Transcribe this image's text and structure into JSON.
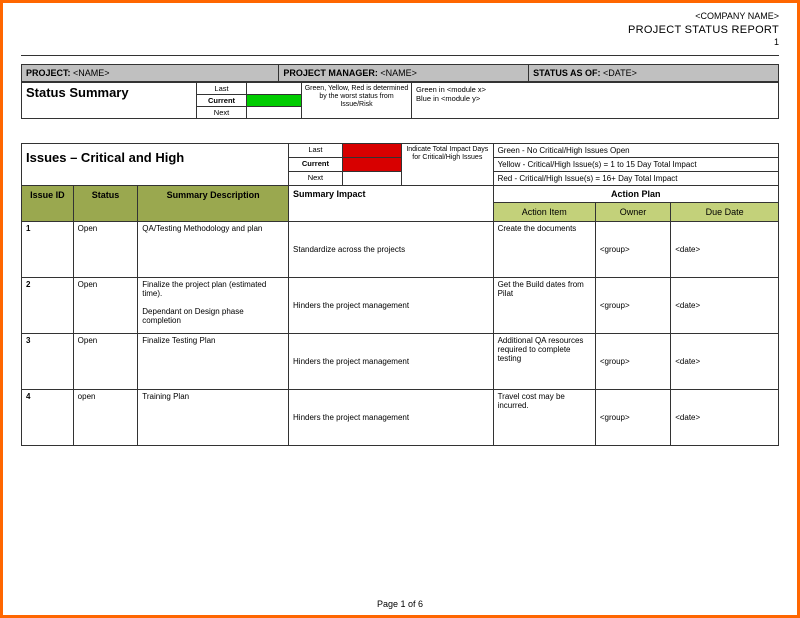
{
  "header": {
    "company": "<COMPANY NAME>",
    "reportTitle": "PROJECT STATUS REPORT",
    "pageTop": "1"
  },
  "meta": {
    "projectLabel": "PROJECT:",
    "projectValue": "<NAME>",
    "pmLabel": "PROJECT MANAGER:",
    "pmValue": "<NAME>",
    "statusAsOfLabel": "STATUS AS OF:",
    "statusAsOfValue": "<DATE>"
  },
  "statusSummary": {
    "title": "Status Summary",
    "rows": {
      "last": "Last",
      "current": "Current",
      "next": "Next"
    },
    "colors": {
      "last": "#ffffff",
      "current": "#00cc00",
      "next": "#ffffff"
    },
    "determinedNote": "Green, Yellow, Red is determined by the worst status from Issue/Risk",
    "moduleNote1": "Green in <module x>",
    "moduleNote2": "Blue in  <module y>"
  },
  "issuesSection": {
    "title": "Issues – Critical and High",
    "miniRows": {
      "last": "Last",
      "current": "Current",
      "next": "Next"
    },
    "miniColors": {
      "last": "#d80000",
      "current": "#d80000",
      "next": "#ffffff"
    },
    "impactNote": "Indicate Total Impact Days for Critical/High Issues",
    "legend1": "Green - No Critical/High Issues Open",
    "legend2": "Yellow - Critical/High Issue(s) = 1 to 15 Day Total Impact",
    "legend3": "Red - Critical/High Issue(s) = 16+ Day Total Impact",
    "headers": {
      "issueId": "Issue ID",
      "status": "Status",
      "summaryDesc": "Summary Description",
      "summaryImpact": "Summary Impact",
      "actionPlan": "Action Plan",
      "actionItem": "Action Item",
      "owner": "Owner",
      "dueDate": "Due Date"
    },
    "rows": [
      {
        "id": "1",
        "status": "Open",
        "desc": "QA/Testing Methodology and plan",
        "impact": "Standardize across the projects",
        "action": "Create the documents",
        "owner": "<group>",
        "due": "<date>"
      },
      {
        "id": "2",
        "status": "Open",
        "desc": "Finalize the project plan (estimated time).\n\nDependant on Design phase completion",
        "impact": "Hinders the project  management",
        "action": "Get the Build dates from Pilat",
        "owner": "<group>",
        "due": "<date>"
      },
      {
        "id": "3",
        "status": "Open",
        "desc": "Finalize Testing Plan",
        "impact": "Hinders the project  management",
        "action": "Additional QA resources required to complete testing",
        "owner": "<group>",
        "due": "<date>"
      },
      {
        "id": "4",
        "status": "open",
        "desc": "Training Plan",
        "impact": "Hinders the project  management",
        "action": "Travel cost may be incurred.",
        "owner": "<group>",
        "due": "<date>"
      }
    ]
  },
  "footer": "Page 1 of 6"
}
